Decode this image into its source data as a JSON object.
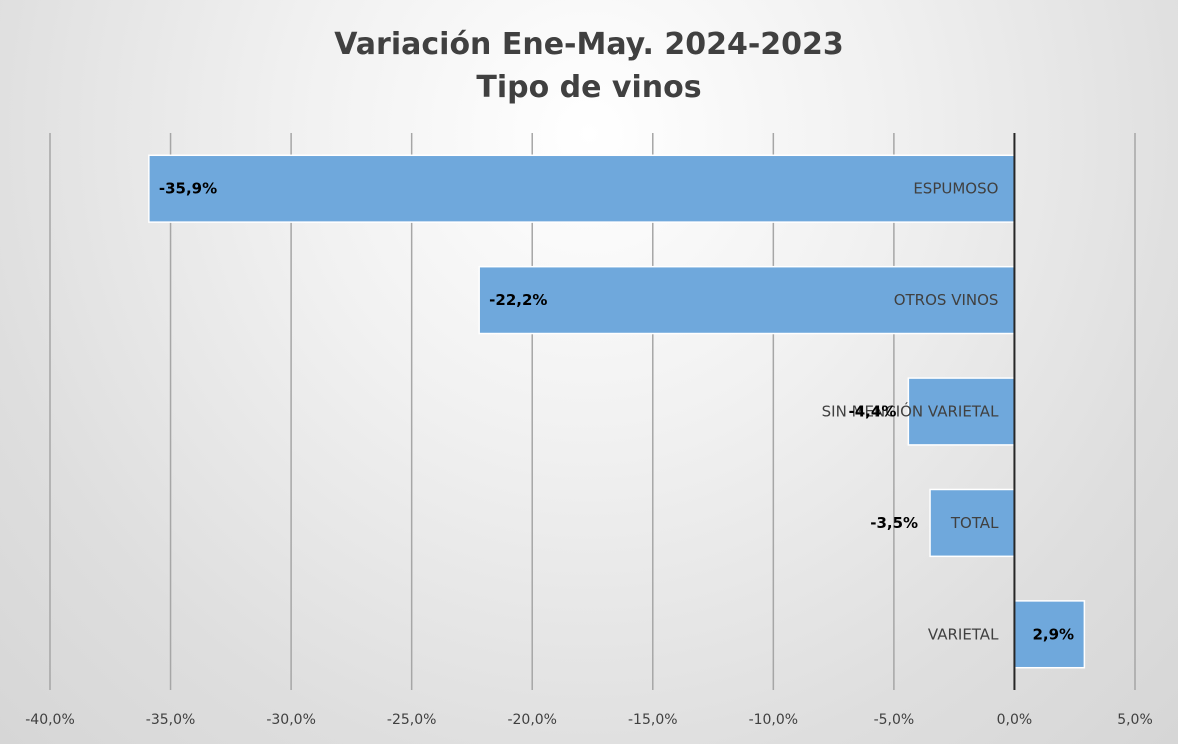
{
  "chart_data": {
    "type": "bar",
    "orientation": "horizontal",
    "title": "Variación Ene-May. 2024-2023",
    "subtitle": "Tipo de vinos",
    "categories": [
      "ESPUMOSO",
      "OTROS VINOS",
      "SIN MENCIÓN VARIETAL",
      "TOTAL",
      "VARIETAL"
    ],
    "values": [
      -35.9,
      -22.2,
      -4.4,
      -3.5,
      2.9
    ],
    "data_labels": [
      "-35,9%",
      "-22,2%",
      "-4,4%",
      "-3,5%",
      "2,9%"
    ],
    "xlim": [
      -40,
      5
    ],
    "x_ticks": [
      -40,
      -35,
      -30,
      -25,
      -20,
      -15,
      -10,
      -5,
      0,
      5
    ],
    "x_tick_labels": [
      "-40,0%",
      "-35,0%",
      "-30,0%",
      "-25,0%",
      "-20,0%",
      "-15,0%",
      "-10,0%",
      "-5,0%",
      "0,0%",
      "5,0%"
    ],
    "grid": true,
    "legend": "none",
    "bar_color": "#6fa8dc",
    "bar_edge_color": "#ffffff",
    "grid_color": "#a6a6a6",
    "axis_color": "#262626"
  }
}
